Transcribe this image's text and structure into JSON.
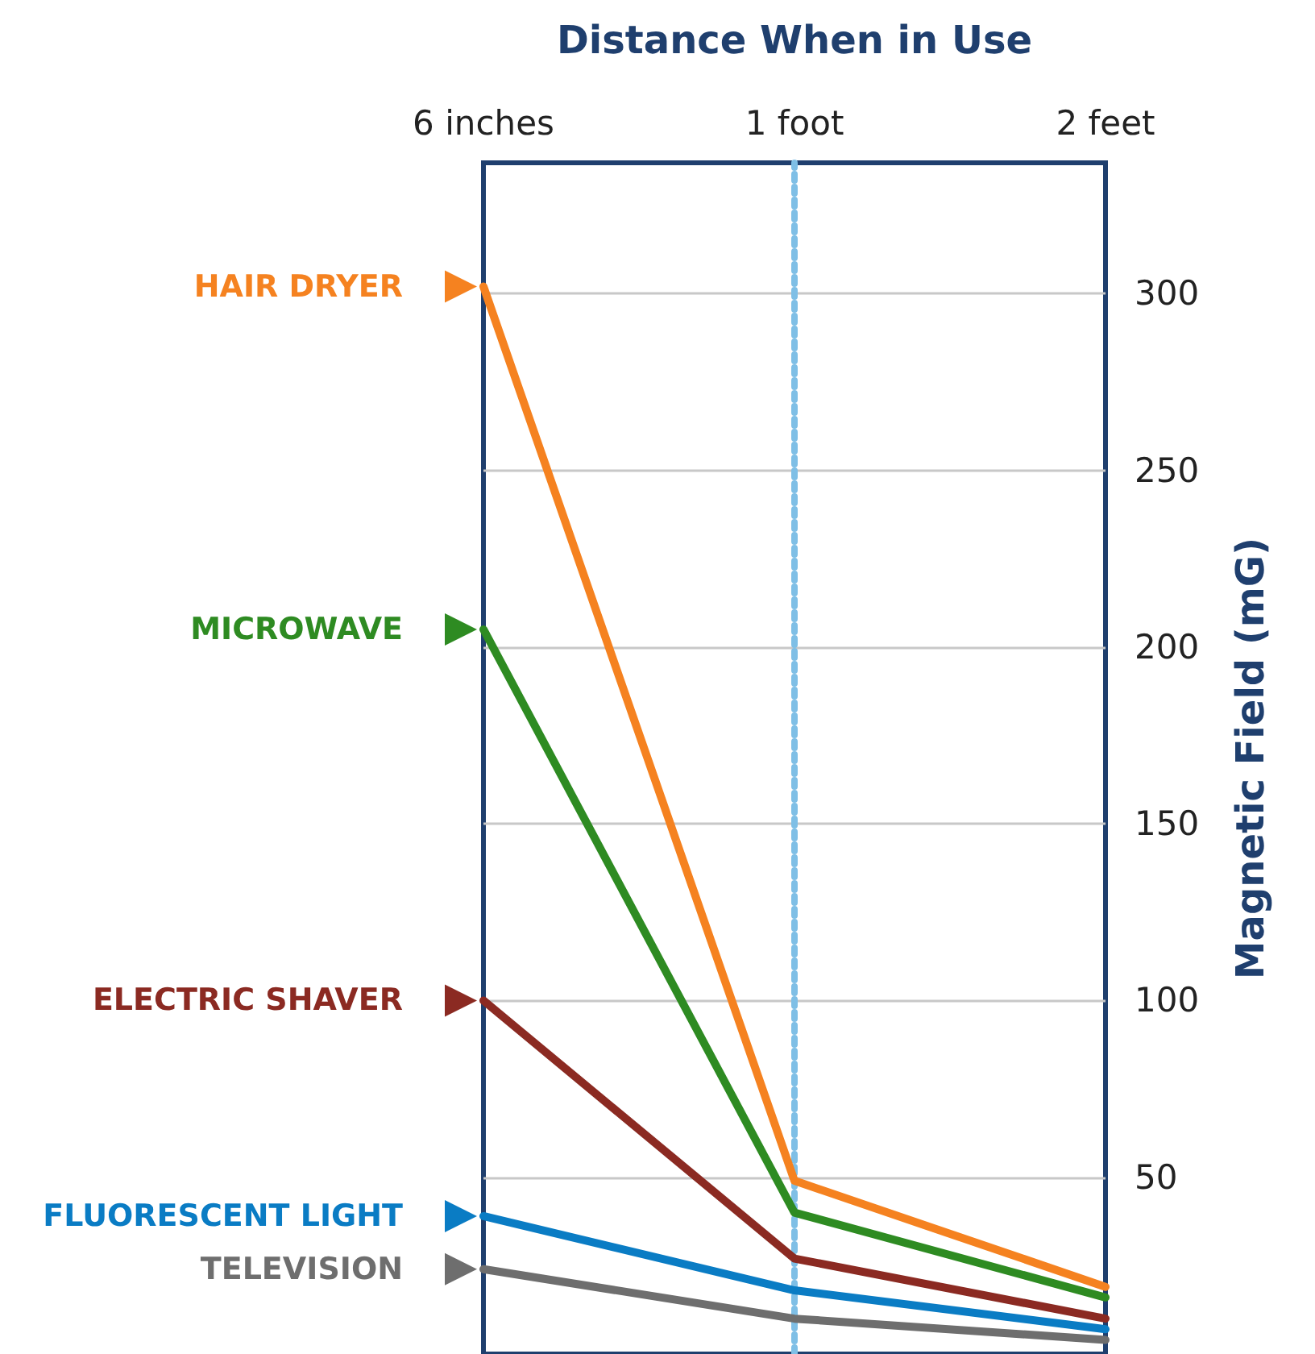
{
  "chart_data": {
    "type": "line",
    "xlabel": "Distance When in Use",
    "ylabel": "Magnetic Field (mG)",
    "categories": [
      "6 inches",
      "1 foot",
      "2 feet"
    ],
    "series": [
      {
        "name": "HAIR DRYER",
        "color": "#f58220",
        "values": [
          302,
          49,
          19
        ]
      },
      {
        "name": "MICROWAVE",
        "color": "#2e8b22",
        "values": [
          205,
          40,
          16
        ]
      },
      {
        "name": "ELECTRIC SHAVER",
        "color": "#8b2a22",
        "values": [
          100,
          27,
          10
        ]
      },
      {
        "name": "FLUORESCENT LIGHT",
        "color": "#0a7cc4",
        "values": [
          39,
          18,
          7
        ]
      },
      {
        "name": "TELEVISION",
        "color": "#6e6e6e",
        "values": [
          24,
          10,
          4
        ]
      }
    ],
    "ylim": [
      0,
      337
    ],
    "yticks": [
      50,
      100,
      150,
      200,
      250,
      300
    ],
    "grid": "y",
    "ref_lines": [
      {
        "axis": "x",
        "value": "1 foot",
        "color": "#7fbfe6",
        "line_style": "dotted"
      }
    ],
    "legend": "left"
  }
}
